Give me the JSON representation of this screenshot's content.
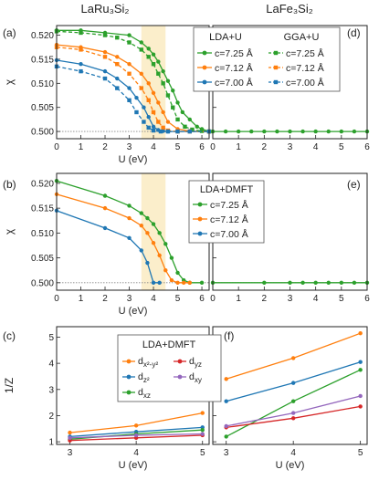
{
  "titles": {
    "left": "LaRu₃Si₂",
    "right": "LaFe₃Si₂"
  },
  "panel_letters": [
    "(a)",
    "(b)",
    "(c)",
    "(d)",
    "(e)",
    "(f)"
  ],
  "colors": {
    "green": "#2ca02c",
    "orange": "#ff7f0e",
    "blue": "#1f77b4",
    "red": "#d62728",
    "purple": "#9467bd",
    "band": "#fbeecb"
  },
  "legend_ab": {
    "lda_head": "LDA+U",
    "gga_head": "GGA+U",
    "entries": [
      "c=7.25 Å",
      "c=7.12 Å",
      "c=7.00 Å"
    ],
    "dmft_head": "LDA+DMFT"
  },
  "legend_c": {
    "head": "LDA+DMFT",
    "orbitals": [
      "d_{x²-y²}",
      "d_{yz}",
      "d_{z²}",
      "d_{xy}",
      "d_{xz}"
    ]
  },
  "chart_data": [
    {
      "id": "a",
      "type": "line",
      "xlabel": "U (eV)",
      "ylabel": "χ",
      "xlim": [
        0,
        6.3
      ],
      "ylim": [
        0.4985,
        0.522
      ],
      "xticks": [
        0,
        1,
        2,
        3,
        4,
        5,
        6
      ],
      "yticks": [
        0.5,
        0.505,
        0.51,
        0.515,
        0.52
      ],
      "shaded_band": [
        3.5,
        4.5
      ],
      "reference_line": 0.5,
      "series": [
        {
          "name": "LDA+U c=7.25 Å",
          "color": "green",
          "dashed": false,
          "x": [
            0,
            1,
            2,
            3,
            3.5,
            3.8,
            4,
            4.2,
            4.4,
            4.6,
            4.8,
            5,
            5.2,
            5.5,
            5.8,
            6.0,
            6.3
          ],
          "y": [
            0.521,
            0.521,
            0.5205,
            0.52,
            0.5185,
            0.5172,
            0.516,
            0.5145,
            0.5125,
            0.5105,
            0.5085,
            0.506,
            0.504,
            0.5025,
            0.501,
            0.5005,
            0.5
          ]
        },
        {
          "name": "LDA+U c=7.12 Å",
          "color": "orange",
          "dashed": false,
          "x": [
            0,
            1,
            2,
            2.5,
            3,
            3.5,
            3.8,
            4,
            4.2,
            4.4,
            4.6,
            5,
            5.5,
            6.3
          ],
          "y": [
            0.518,
            0.5175,
            0.5165,
            0.5155,
            0.514,
            0.512,
            0.51,
            0.508,
            0.506,
            0.504,
            0.502,
            0.5005,
            0.5001,
            0.5
          ]
        },
        {
          "name": "LDA+U c=7.00 Å",
          "color": "blue",
          "dashed": false,
          "x": [
            0,
            1,
            2,
            2.5,
            3,
            3.3,
            3.6,
            3.8,
            4,
            4.2,
            4.4,
            4.6,
            5,
            5.5,
            6.3
          ],
          "y": [
            0.5148,
            0.514,
            0.5125,
            0.511,
            0.509,
            0.507,
            0.505,
            0.503,
            0.501,
            0.5003,
            0.5001,
            0.5,
            0.5,
            0.5,
            0.5
          ]
        },
        {
          "name": "GGA+U c=7.25 Å",
          "color": "green",
          "dashed": true,
          "x": [
            0,
            1,
            2,
            2.5,
            3,
            3.5,
            3.8,
            4,
            4.2,
            4.4,
            4.6,
            4.8,
            5,
            5.3,
            5.6,
            6.0,
            6.3
          ],
          "y": [
            0.5208,
            0.5205,
            0.52,
            0.5195,
            0.5185,
            0.517,
            0.5155,
            0.514,
            0.512,
            0.51,
            0.5075,
            0.505,
            0.5025,
            0.501,
            0.5004,
            0.5001,
            0.5
          ]
        },
        {
          "name": "GGA+U c=7.12 Å",
          "color": "orange",
          "dashed": true,
          "x": [
            0,
            1,
            2,
            2.5,
            3,
            3.5,
            3.8,
            4,
            4.2,
            4.4,
            4.6,
            5,
            5.5,
            6.3
          ],
          "y": [
            0.5175,
            0.517,
            0.5155,
            0.514,
            0.512,
            0.509,
            0.5065,
            0.504,
            0.502,
            0.5008,
            0.5002,
            0.5,
            0.5,
            0.5
          ]
        },
        {
          "name": "GGA+U c=7.00 Å",
          "color": "blue",
          "dashed": true,
          "x": [
            0,
            1,
            2,
            2.5,
            3,
            3.3,
            3.6,
            3.8,
            4,
            4.3,
            4.6,
            5,
            5.5,
            6.3
          ],
          "y": [
            0.5135,
            0.5125,
            0.511,
            0.509,
            0.5065,
            0.504,
            0.502,
            0.5008,
            0.5002,
            0.5,
            0.5,
            0.5,
            0.5,
            0.5
          ]
        }
      ]
    },
    {
      "id": "d",
      "type": "line",
      "xlim": [
        0,
        6
      ],
      "ylim": [
        0.4985,
        0.522
      ],
      "xticks": [
        0,
        1,
        2,
        3,
        4,
        5,
        6
      ],
      "reference_line": 0.5,
      "series": [
        {
          "name": "LaFe3Si2",
          "color": "green",
          "dashed": false,
          "x": [
            0,
            0.5,
            1,
            1.5,
            2,
            2.5,
            3,
            3.5,
            4,
            4.5,
            5,
            5.5,
            6
          ],
          "y": [
            0.5,
            0.5,
            0.5,
            0.5,
            0.5,
            0.5,
            0.5,
            0.5,
            0.5,
            0.5,
            0.5,
            0.5,
            0.5
          ]
        }
      ]
    },
    {
      "id": "b",
      "type": "line",
      "xlabel": "U (eV)",
      "ylabel": "χ",
      "xlim": [
        0,
        6.3
      ],
      "ylim": [
        0.4985,
        0.522
      ],
      "xticks": [
        0,
        1,
        2,
        3,
        4,
        5,
        6
      ],
      "yticks": [
        0.5,
        0.505,
        0.51,
        0.515,
        0.52
      ],
      "shaded_band": [
        3.5,
        4.5
      ],
      "reference_line": 0.5,
      "series": [
        {
          "name": "c=7.25 Å",
          "color": "green",
          "x": [
            0,
            2,
            3,
            3.5,
            3.75,
            4,
            4.25,
            4.5,
            4.75,
            5,
            5.25,
            5.5,
            6
          ],
          "y": [
            0.5205,
            0.5175,
            0.5155,
            0.514,
            0.513,
            0.5118,
            0.51,
            0.5078,
            0.505,
            0.502,
            0.5005,
            0.5,
            0.5
          ]
        },
        {
          "name": "c=7.12 Å",
          "color": "orange",
          "x": [
            0,
            2,
            3,
            3.5,
            3.75,
            4,
            4.25,
            4.5,
            4.75,
            5,
            5.25,
            5.5
          ],
          "y": [
            0.5178,
            0.515,
            0.513,
            0.5115,
            0.51,
            0.508,
            0.5055,
            0.5025,
            0.5005,
            0.5,
            0.5,
            0.5
          ]
        },
        {
          "name": "c=7.00 Å",
          "color": "blue",
          "x": [
            0,
            2,
            3,
            3.5,
            3.75,
            4,
            4.25
          ],
          "y": [
            0.5145,
            0.511,
            0.509,
            0.5065,
            0.504,
            0.5,
            0.5
          ]
        }
      ]
    },
    {
      "id": "e",
      "type": "line",
      "xlim": [
        0,
        6
      ],
      "ylim": [
        0.4985,
        0.522
      ],
      "xticks": [
        0,
        1,
        2,
        3,
        4,
        5,
        6
      ],
      "reference_line": 0.5,
      "series": [
        {
          "name": "LaFe3Si2",
          "color": "green",
          "dashed": false,
          "x": [
            0,
            2,
            3,
            3.5,
            4,
            4.5,
            5,
            5.5,
            6
          ],
          "y": [
            0.5,
            0.5,
            0.5,
            0.5,
            0.5,
            0.5,
            0.5,
            0.5,
            0.5
          ]
        }
      ]
    },
    {
      "id": "c",
      "type": "line",
      "xlabel": "U (eV)",
      "ylabel": "1/Z",
      "xlim": [
        2.8,
        5.1
      ],
      "ylim": [
        0.9,
        5.4
      ],
      "xticks": [
        3,
        4,
        5
      ],
      "yticks": [
        1,
        2,
        3,
        4,
        5
      ],
      "series": [
        {
          "name": "d_{x²-y²}",
          "color": "orange",
          "x": [
            3,
            4,
            5
          ],
          "y": [
            1.35,
            1.62,
            2.1
          ]
        },
        {
          "name": "d_{z²}",
          "color": "blue",
          "x": [
            3,
            4,
            5
          ],
          "y": [
            1.2,
            1.38,
            1.55
          ]
        },
        {
          "name": "d_{xz}",
          "color": "green",
          "x": [
            3,
            4,
            5
          ],
          "y": [
            1.1,
            1.3,
            1.45
          ]
        },
        {
          "name": "d_{yz}",
          "color": "red",
          "x": [
            3,
            4,
            5
          ],
          "y": [
            1.05,
            1.15,
            1.25
          ]
        },
        {
          "name": "d_{xy}",
          "color": "purple",
          "x": [
            3,
            4,
            5
          ],
          "y": [
            1.15,
            1.25,
            1.3
          ]
        }
      ]
    },
    {
      "id": "f",
      "type": "line",
      "xlabel": "U (eV)",
      "xlim": [
        2.8,
        5.1
      ],
      "ylim": [
        0.9,
        5.4
      ],
      "xticks": [
        3,
        4,
        5
      ],
      "series": [
        {
          "name": "d_{x²-y²}",
          "color": "orange",
          "x": [
            3,
            4,
            5
          ],
          "y": [
            3.4,
            4.2,
            5.15
          ]
        },
        {
          "name": "d_{z²}",
          "color": "blue",
          "x": [
            3,
            4,
            5
          ],
          "y": [
            2.55,
            3.25,
            4.05
          ]
        },
        {
          "name": "d_{xz}",
          "color": "green",
          "x": [
            3,
            4,
            5
          ],
          "y": [
            1.2,
            2.55,
            3.75
          ]
        },
        {
          "name": "d_{yz}",
          "color": "red",
          "x": [
            3,
            4,
            5
          ],
          "y": [
            1.55,
            1.9,
            2.35
          ]
        },
        {
          "name": "d_{xy}",
          "color": "purple",
          "x": [
            3,
            4,
            5
          ],
          "y": [
            1.6,
            2.1,
            2.75
          ]
        }
      ]
    }
  ]
}
